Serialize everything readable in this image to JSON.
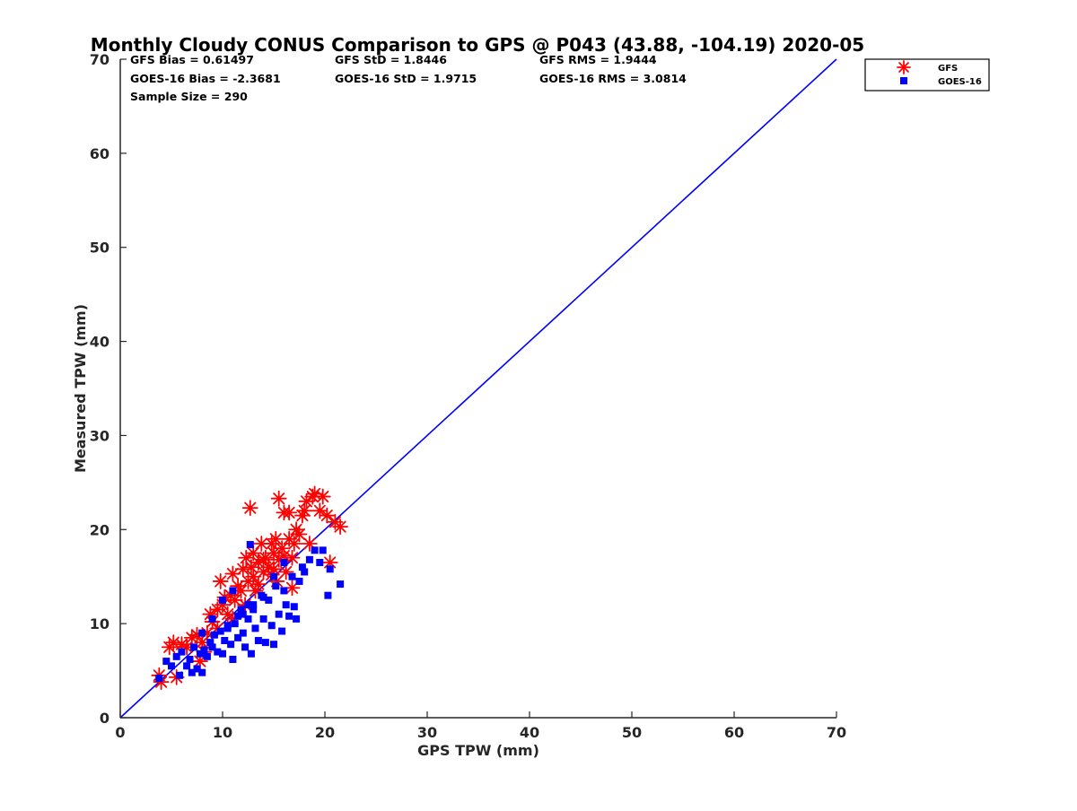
{
  "chart_data": {
    "type": "scatter",
    "title": "Monthly Cloudy CONUS Comparison to GPS @ P043 (43.88, -104.19) 2020-05",
    "xlabel": "GPS TPW (mm)",
    "ylabel": "Measured TPW (mm)",
    "xlim": [
      0,
      70
    ],
    "ylim": [
      0,
      70
    ],
    "xticks": [
      "0",
      "10",
      "20",
      "30",
      "40",
      "50",
      "60",
      "70"
    ],
    "yticks": [
      "0",
      "10",
      "20",
      "30",
      "40",
      "50",
      "60",
      "70"
    ],
    "stats": [
      "GFS Bias = 0.61497",
      "GFS StD = 1.8446",
      "GFS RMS = 1.9444",
      "GOES-16 Bias = -2.3681",
      "GOES-16 StD = 1.9715",
      "GOES-16 RMS = 3.0814",
      "Sample Size = 290"
    ],
    "legend_position": "top-right (outside plot)",
    "reference_line": {
      "x": [
        0,
        70
      ],
      "y": [
        0,
        70
      ],
      "color": "#0000ff"
    },
    "series": [
      {
        "name": "GFS",
        "marker": "asterisk",
        "color": "#ff0000",
        "points": [
          [
            3.8,
            4.5
          ],
          [
            4.0,
            3.8
          ],
          [
            4.8,
            7.5
          ],
          [
            5.2,
            8.0
          ],
          [
            5.5,
            4.3
          ],
          [
            6.0,
            7.8
          ],
          [
            6.5,
            7.5
          ],
          [
            7.0,
            8.5
          ],
          [
            7.5,
            8.8
          ],
          [
            7.8,
            6.0
          ],
          [
            8.0,
            8.0
          ],
          [
            8.5,
            9.0
          ],
          [
            8.8,
            11.0
          ],
          [
            9.0,
            10.2
          ],
          [
            9.5,
            11.5
          ],
          [
            9.8,
            14.5
          ],
          [
            10.0,
            12.0
          ],
          [
            10.2,
            12.8
          ],
          [
            10.5,
            11.0
          ],
          [
            10.8,
            13.0
          ],
          [
            11.0,
            15.3
          ],
          [
            11.2,
            12.5
          ],
          [
            11.5,
            14.0
          ],
          [
            11.8,
            13.5
          ],
          [
            12.0,
            15.8
          ],
          [
            12.2,
            12.0
          ],
          [
            12.5,
            14.5
          ],
          [
            12.7,
            22.3
          ],
          [
            12.8,
            16.0
          ],
          [
            13.0,
            15.0
          ],
          [
            13.2,
            13.5
          ],
          [
            13.5,
            16.5
          ],
          [
            13.8,
            18.5
          ],
          [
            14.0,
            15.5
          ],
          [
            14.2,
            17.0
          ],
          [
            14.5,
            16.0
          ],
          [
            14.8,
            18.5
          ],
          [
            15.0,
            17.5
          ],
          [
            15.2,
            19.0
          ],
          [
            15.3,
            14.5
          ],
          [
            15.5,
            23.3
          ],
          [
            15.5,
            16.8
          ],
          [
            15.8,
            18.0
          ],
          [
            16.0,
            21.8
          ],
          [
            16.0,
            17.2
          ],
          [
            16.2,
            15.5
          ],
          [
            16.5,
            19.0
          ],
          [
            16.5,
            21.8
          ],
          [
            16.8,
            17.0
          ],
          [
            17.0,
            18.5
          ],
          [
            17.2,
            20.0
          ],
          [
            17.5,
            19.5
          ],
          [
            17.8,
            21.5
          ],
          [
            18.0,
            22.0
          ],
          [
            18.2,
            23.0
          ],
          [
            18.5,
            18.5
          ],
          [
            18.8,
            23.5
          ],
          [
            19.0,
            23.8
          ],
          [
            19.5,
            22.0
          ],
          [
            19.8,
            23.5
          ],
          [
            20.2,
            21.5
          ],
          [
            20.5,
            16.5
          ],
          [
            21.0,
            20.8
          ],
          [
            21.5,
            20.3
          ],
          [
            13.0,
            17.5
          ],
          [
            14.0,
            16.8
          ],
          [
            15.0,
            15.8
          ],
          [
            16.8,
            13.8
          ],
          [
            9.5,
            9.5
          ],
          [
            11.0,
            10.5
          ],
          [
            8.2,
            7.0
          ],
          [
            12.3,
            17.0
          ],
          [
            14.8,
            15.2
          ],
          [
            13.5,
            14.2
          ]
        ]
      },
      {
        "name": "GOES-16",
        "marker": "square",
        "color": "#0000ff",
        "points": [
          [
            3.8,
            4.2
          ],
          [
            4.5,
            6.0
          ],
          [
            5.0,
            5.5
          ],
          [
            5.5,
            6.5
          ],
          [
            5.8,
            4.5
          ],
          [
            6.0,
            7.0
          ],
          [
            6.5,
            5.5
          ],
          [
            6.8,
            6.2
          ],
          [
            7.0,
            4.8
          ],
          [
            7.2,
            7.5
          ],
          [
            7.5,
            5.2
          ],
          [
            7.8,
            6.8
          ],
          [
            8.0,
            4.8
          ],
          [
            8.2,
            7.2
          ],
          [
            8.5,
            6.5
          ],
          [
            8.8,
            8.0
          ],
          [
            9.0,
            7.5
          ],
          [
            9.2,
            8.8
          ],
          [
            9.5,
            7.0
          ],
          [
            9.8,
            9.2
          ],
          [
            10.0,
            6.8
          ],
          [
            10.2,
            8.2
          ],
          [
            10.5,
            9.5
          ],
          [
            10.8,
            7.8
          ],
          [
            11.0,
            6.2
          ],
          [
            11.2,
            10.0
          ],
          [
            11.5,
            8.5
          ],
          [
            11.8,
            11.5
          ],
          [
            12.0,
            9.0
          ],
          [
            12.2,
            7.5
          ],
          [
            12.5,
            10.5
          ],
          [
            12.7,
            18.4
          ],
          [
            12.8,
            6.8
          ],
          [
            13.0,
            12.0
          ],
          [
            13.2,
            9.5
          ],
          [
            13.5,
            8.2
          ],
          [
            13.8,
            13.0
          ],
          [
            14.0,
            10.5
          ],
          [
            14.2,
            8.0
          ],
          [
            14.5,
            12.5
          ],
          [
            14.8,
            9.8
          ],
          [
            15.0,
            7.8
          ],
          [
            15.2,
            14.0
          ],
          [
            15.5,
            11.0
          ],
          [
            15.8,
            9.2
          ],
          [
            16.0,
            13.5
          ],
          [
            16.2,
            12.0
          ],
          [
            16.5,
            10.8
          ],
          [
            16.8,
            15.0
          ],
          [
            17.0,
            11.8
          ],
          [
            17.2,
            10.5
          ],
          [
            17.5,
            14.5
          ],
          [
            17.8,
            16.0
          ],
          [
            18.0,
            15.5
          ],
          [
            18.5,
            16.8
          ],
          [
            19.0,
            17.8
          ],
          [
            19.5,
            16.5
          ],
          [
            19.8,
            17.8
          ],
          [
            20.3,
            13.0
          ],
          [
            20.5,
            15.8
          ],
          [
            21.5,
            14.2
          ],
          [
            10.0,
            12.5
          ],
          [
            11.0,
            13.5
          ],
          [
            12.0,
            11.0
          ],
          [
            13.0,
            11.5
          ],
          [
            14.0,
            12.8
          ],
          [
            9.0,
            10.5
          ],
          [
            8.0,
            9.0
          ],
          [
            15.0,
            15.0
          ],
          [
            16.0,
            16.5
          ],
          [
            12.5,
            12.0
          ],
          [
            11.5,
            10.8
          ],
          [
            10.5,
            9.8
          ]
        ]
      }
    ]
  }
}
